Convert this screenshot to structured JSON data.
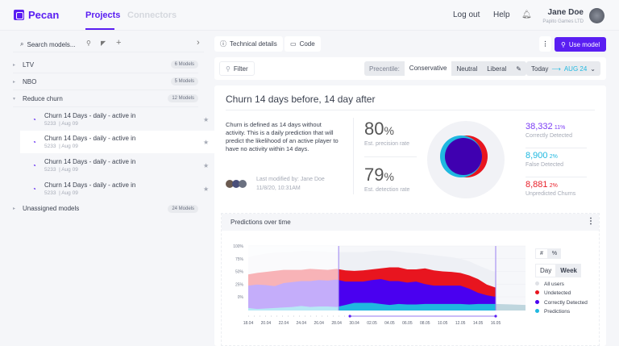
{
  "header": {
    "brand": "Pecan",
    "tabs": [
      {
        "label": "Projects",
        "active": true
      },
      {
        "label": "Connectors",
        "active": false
      }
    ],
    "logout": "Log out",
    "help": "Help",
    "user_name": "Jane Doe",
    "user_company": "Papito Games LTD"
  },
  "sidebar": {
    "search_placeholder": "Search models...",
    "groups": [
      {
        "label": "LTV",
        "count": "6 Models"
      },
      {
        "label": "NBO",
        "count": "5 Models"
      },
      {
        "label": "Reduce churn",
        "count": "12 Models"
      }
    ],
    "models": [
      {
        "name": "Churn 14 Days - daily - active in",
        "id": "5233",
        "date": "Aug 09"
      },
      {
        "name": "Churn 14 Days - daily - active in",
        "id": "5233",
        "date": "Aug 09"
      },
      {
        "name": "Churn 14 Days - daily - active in",
        "id": "5233",
        "date": "Aug 09"
      },
      {
        "name": "Churn 14 Days - daily - active in",
        "id": "5233",
        "date": "Aug 09"
      }
    ],
    "unassigned": {
      "label": "Unassigned models",
      "count": "24 Models"
    }
  },
  "toolbar": {
    "technical": "Technical details",
    "code": "Code",
    "use_model": "Use model",
    "filter": "Filter",
    "percentile_label": "Precentile:",
    "percentiles": [
      "Conservative",
      "Neutral",
      "Liberal"
    ],
    "percentile_selected": "Conservative",
    "date_from": "Today",
    "date_to": "AUG 24"
  },
  "model": {
    "title": "Churn 14 days before, 14 day after",
    "description": "Churn is defined as 14 days without activity. This is a daily prediction that will predict the likelihood of an active player to have no activity within 14 days.",
    "modified_by": "Last modified by: Jane Doe",
    "modified_at": "11/8/20, 10:31AM",
    "precision": "80",
    "precision_unit": "%",
    "precision_label": "Est. precision rate",
    "detection": "79",
    "detection_unit": "%",
    "detection_label": "Est. detection rate",
    "stats": [
      {
        "value": "38,332",
        "pct": "11%",
        "label": "Correctly Detected",
        "color": "#7b3cf5"
      },
      {
        "value": "8,900",
        "pct": "2%",
        "label": "False Detected",
        "color": "#1fb8e0"
      },
      {
        "value": "8,881",
        "pct": "2%",
        "label": "Unpredicted Churns",
        "color": "#e8202a"
      }
    ]
  },
  "chart_panel": {
    "title": "Predictions over time",
    "unit_toggle": [
      "#",
      "%"
    ],
    "period_toggle": [
      "Day",
      "Week"
    ]
  },
  "chart_data": {
    "type": "area",
    "title": "Predictions over time",
    "x": [
      "18.04",
      "19.04",
      "20.04",
      "21.04",
      "22.04",
      "23.04",
      "24.04",
      "25.04",
      "26.04",
      "27.04",
      "28.04",
      "29.04",
      "30.04",
      "01.05",
      "02.05",
      "03.05",
      "04.05",
      "05.05",
      "06.05",
      "07.05",
      "08.05",
      "09.05",
      "10.05",
      "11.05",
      "12.05",
      "13.05",
      "14.05",
      "15.05",
      "16.05"
    ],
    "xticks": [
      "18.04",
      "20.04",
      "22.04",
      "24.04",
      "26.04",
      "28.04",
      "30.04",
      "02.05",
      "04.05",
      "06.05",
      "08.05",
      "10.05",
      "12.05",
      "14.05",
      "16.05"
    ],
    "yticks": [
      "100%",
      "75%",
      "50%",
      "25%",
      "0%"
    ],
    "ylim": [
      -27,
      100
    ],
    "grid": true,
    "legend": "right",
    "selected_range": [
      "29.04",
      "16.05"
    ],
    "series": [
      {
        "name": "All users",
        "color": "#eef0f5",
        "values": [
          78,
          82,
          85,
          87,
          88,
          88,
          90,
          90,
          89,
          88,
          88,
          88,
          88,
          88,
          90,
          91,
          91,
          89,
          87,
          86,
          84,
          82,
          80,
          78,
          75,
          70,
          62,
          55,
          48
        ]
      },
      {
        "name": "Undetected",
        "color": "#e8151f",
        "values": [
          44,
          47,
          49,
          51,
          53,
          53,
          53,
          55,
          54,
          53,
          55,
          52,
          51,
          52,
          54,
          56,
          58,
          58,
          54,
          54,
          56,
          52,
          50,
          49,
          47,
          42,
          35,
          24,
          18
        ]
      },
      {
        "name": "Correctly Detected",
        "color": "#4a00f0",
        "values": [
          22,
          24,
          23,
          21,
          27,
          29,
          31,
          31,
          33,
          32,
          34,
          30,
          30,
          30,
          33,
          35,
          31,
          31,
          28,
          30,
          25,
          22,
          22,
          22,
          22,
          16,
          8,
          3,
          0
        ]
      },
      {
        "name": "Predictions",
        "color": "#1fb8e0",
        "values": [
          -22,
          -24,
          -23,
          -22,
          -21,
          -20,
          -18,
          -20,
          -19,
          -19,
          -20,
          -16,
          -12,
          -12,
          -12,
          -14,
          -16,
          -14,
          -15,
          -15,
          -14,
          -14,
          -14,
          -14,
          -14,
          -15,
          -14,
          -14,
          -14
        ]
      }
    ]
  }
}
